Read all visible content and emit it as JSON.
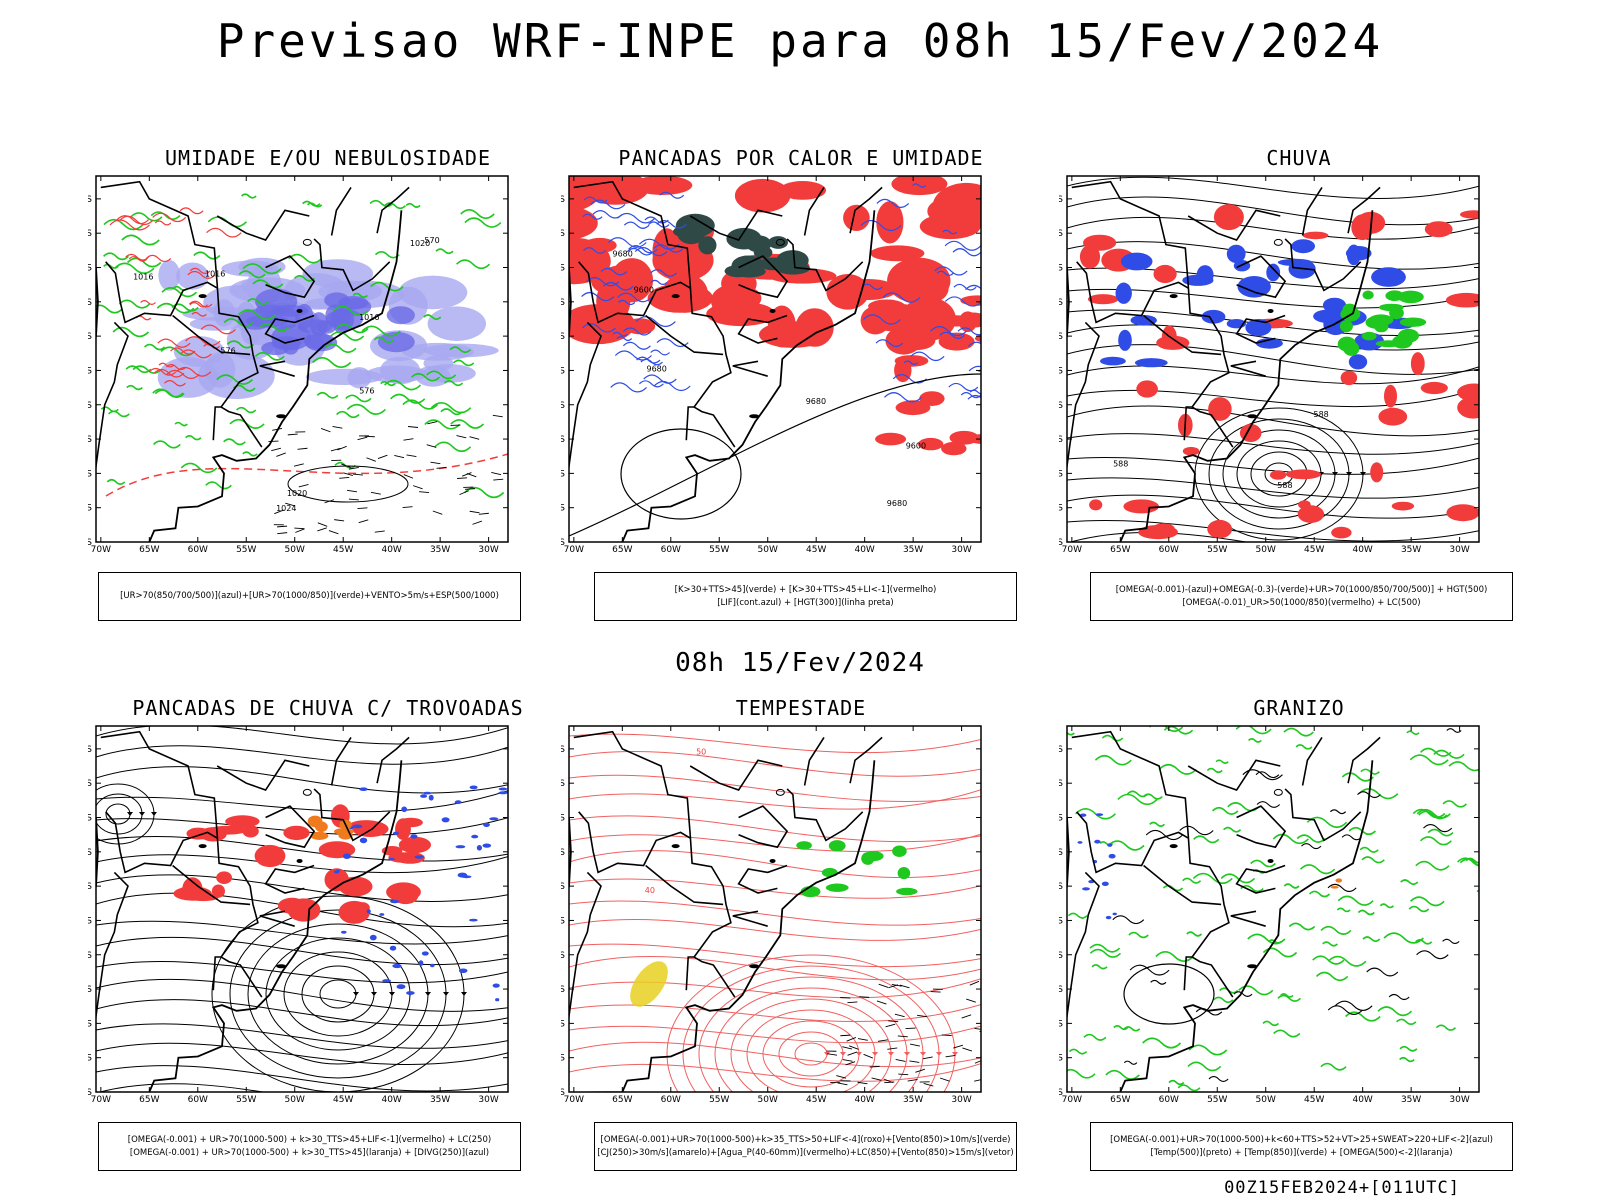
{
  "header": {
    "title": "Previsao WRF-INPE  para 08h 15/Fev/2024"
  },
  "mid_title": "08h 15/Fev/2024",
  "footer": {
    "timestamp": "00Z15FEB2024+[011UTC]"
  },
  "axes": {
    "lat_labels": [
      "12S",
      "15S",
      "18S",
      "21S",
      "24S",
      "27S",
      "30S",
      "33S",
      "36S",
      "39S",
      "42S"
    ],
    "lon_labels": [
      "70W",
      "65W",
      "60W",
      "55W",
      "50W",
      "45W",
      "40W",
      "35W",
      "30W"
    ]
  },
  "panels": [
    {
      "title": "UMIDADE E/OU NEBULOSIDADE",
      "legend": [
        "[UR>70(850/700/500)](azul)+[UR>70(1000/850)](verde)+VENTO>5m/s+ESP(500/1000)"
      ],
      "contour_labels": [
        "1016",
        "1016",
        "1016",
        "1020",
        "1020",
        "1024",
        "576",
        "576",
        "570"
      ]
    },
    {
      "title": "PANCADAS POR CALOR E UMIDADE",
      "legend": [
        "[K>30+TTS>45](verde) + [K>30+TTS>45+LI<-1](vermelho)",
        "[LIF](cont.azul) + [HGT(300)](linha preta)"
      ],
      "contour_labels": [
        "9680",
        "9680",
        "9680",
        "9680",
        "9600",
        "9600"
      ]
    },
    {
      "title": "CHUVA",
      "legend": [
        "[OMEGA(-0.001)-(azul)+OMEGA(-0.3)-(verde)+UR>70(1000/850/700/500)] + HGT(500)",
        "[OMEGA(-0.01)_UR>50(1000/850)(vermelho) + LC(500)"
      ],
      "contour_labels": [
        "588",
        "588",
        "588"
      ]
    },
    {
      "title": "PANCADAS DE CHUVA C/ TROVOADAS",
      "legend": [
        "[OMEGA(-0.001) + UR>70(1000-500) + k>30_TTS>45+LIF<-1](vermelho) + LC(250)",
        "[OMEGA(-0.001) + UR>70(1000-500) + k>30_TTS>45](laranja) + [DIVG(250)](azul)"
      ],
      "contour_labels": []
    },
    {
      "title": "TEMPESTADE",
      "legend": [
        "[OMEGA(-0.001)+UR>70(1000-500)+k>35_TTS>50+LIF<-4](roxo)+[Vento(850)>10m/s](verde)",
        "[CJ(250)>30m/s](amarelo)+[Agua_P(40-60mm)](vermelho)+LC(850)+[Vento(850)>15m/s](vetor)"
      ],
      "contour_labels": [
        "40",
        "50"
      ]
    },
    {
      "title": "GRANIZO",
      "legend": [
        "[OMEGA(-0.001)+UR>70(1000-500)+k<60+TTS>52+VT>25+SWEAT>220+LIF<-2](azul)",
        "[Temp(500)](preto) + [Temp(850)](verde) + [OMEGA(500)<-2](laranja)"
      ],
      "contour_labels": []
    }
  ],
  "colors": {
    "blue": "#2f4de6",
    "red": "#f23c3c",
    "green": "#1ec81e",
    "orange": "#f07a1e",
    "yellow": "#e8d020",
    "lavender": "#a8a8f0",
    "darkteal": "#2f4a46"
  }
}
